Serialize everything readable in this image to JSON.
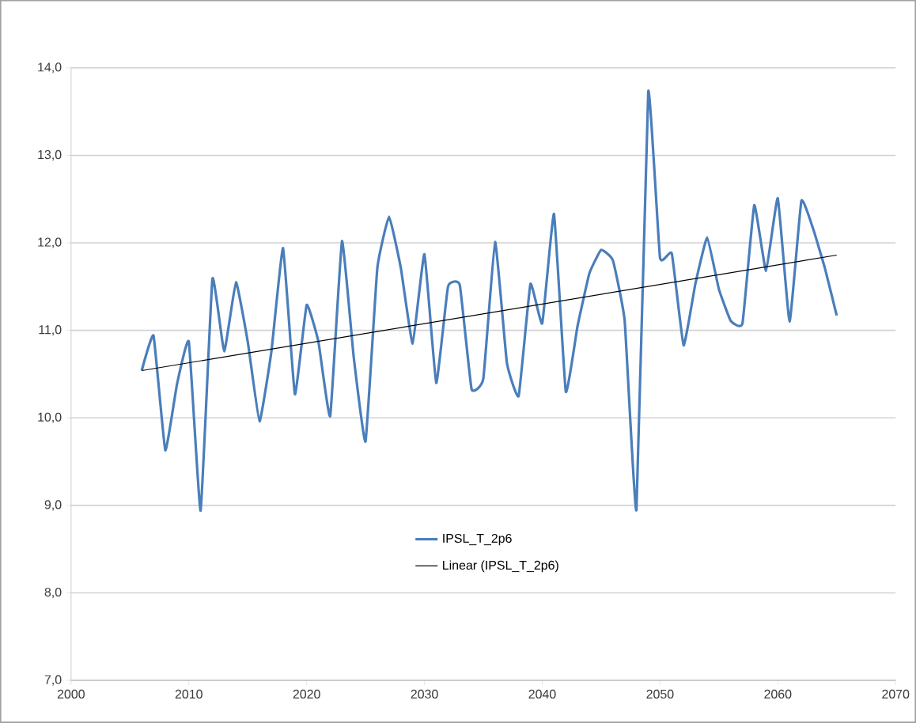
{
  "chart_data": {
    "type": "line",
    "x": [
      2006,
      2007,
      2008,
      2009,
      2010,
      2011,
      2012,
      2013,
      2014,
      2015,
      2016,
      2017,
      2018,
      2019,
      2020,
      2021,
      2022,
      2023,
      2024,
      2025,
      2026,
      2027,
      2028,
      2029,
      2030,
      2031,
      2032,
      2033,
      2034,
      2035,
      2036,
      2037,
      2038,
      2039,
      2040,
      2041,
      2042,
      2043,
      2044,
      2045,
      2046,
      2047,
      2048,
      2049,
      2050,
      2051,
      2052,
      2053,
      2054,
      2055,
      2056,
      2057,
      2058,
      2059,
      2060,
      2061,
      2062,
      2063,
      2064,
      2065
    ],
    "series": [
      {
        "name": "IPSL_T_2p6",
        "color": "#4a7ebb",
        "values": [
          10.54,
          10.94,
          9.63,
          10.39,
          10.87,
          8.94,
          11.59,
          10.76,
          11.55,
          10.87,
          9.96,
          10.75,
          11.94,
          10.27,
          11.29,
          10.87,
          10.02,
          12.02,
          10.69,
          9.73,
          11.71,
          12.3,
          11.71,
          10.85,
          11.87,
          10.4,
          11.5,
          11.52,
          10.33,
          10.45,
          12.01,
          10.63,
          10.25,
          11.53,
          11.08,
          12.33,
          10.3,
          11.05,
          11.65,
          11.92,
          11.8,
          11.11,
          8.95,
          13.73,
          11.83,
          11.88,
          10.83,
          11.53,
          12.06,
          11.47,
          11.11,
          11.08,
          12.43,
          11.68,
          12.51,
          11.1,
          12.48,
          12.16,
          11.71,
          11.17
        ]
      },
      {
        "name": "Linear (IPSL_T_2p6)",
        "type": "line",
        "color": "#000000",
        "x": [
          2006,
          2065
        ],
        "values": [
          10.54,
          11.86
        ]
      }
    ],
    "xlim": [
      2000,
      2070
    ],
    "xticks": [
      2000,
      2010,
      2020,
      2030,
      2040,
      2050,
      2060,
      2070
    ],
    "ylim": [
      7,
      14
    ],
    "yticks": [
      {
        "value": 7,
        "label": "7,0"
      },
      {
        "value": 8,
        "label": "8,0"
      },
      {
        "value": 9,
        "label": "9,0"
      },
      {
        "value": 10,
        "label": "10,0"
      },
      {
        "value": 11,
        "label": "11,0"
      },
      {
        "value": 12,
        "label": "12,0"
      },
      {
        "value": 13,
        "label": "13,0"
      },
      {
        "value": 14,
        "label": "14,0"
      }
    ],
    "grid": "y",
    "legend": "bottom",
    "marker": "none",
    "line_style": "solid"
  }
}
